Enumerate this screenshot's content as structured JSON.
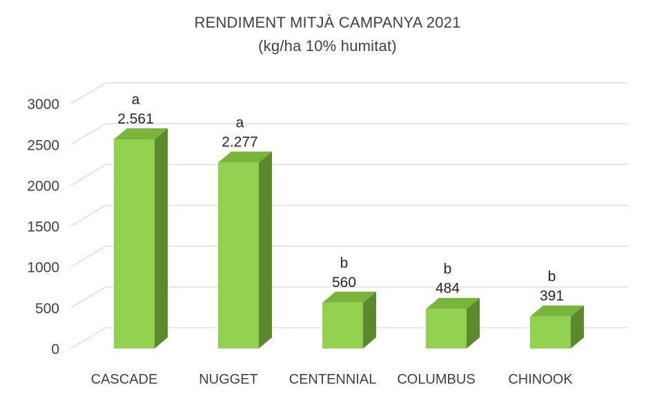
{
  "chart_data": {
    "type": "bar",
    "title": "RENDIMENT MITJÀ CAMPANYA 2021",
    "subtitle": "(kg/ha 10% humitat)",
    "categories": [
      "CASCADE",
      "NUGGET",
      "CENTENNIAL",
      "COLUMBUS",
      "CHINOOK"
    ],
    "values": [
      2561,
      2277,
      560,
      484,
      391
    ],
    "value_labels": [
      "2.561",
      "2.277",
      "560",
      "484",
      "391"
    ],
    "significance_letters": [
      "a",
      "a",
      "b",
      "b",
      "b"
    ],
    "ylim": [
      0,
      3000
    ],
    "yticks": [
      0,
      500,
      1000,
      1500,
      2000,
      2500,
      3000
    ],
    "grid": true,
    "style": "3d-column",
    "colors": {
      "front": "#92d050",
      "side": "#5a8a2c",
      "top": "#79b53c",
      "grid": "#d9d9d9"
    }
  }
}
